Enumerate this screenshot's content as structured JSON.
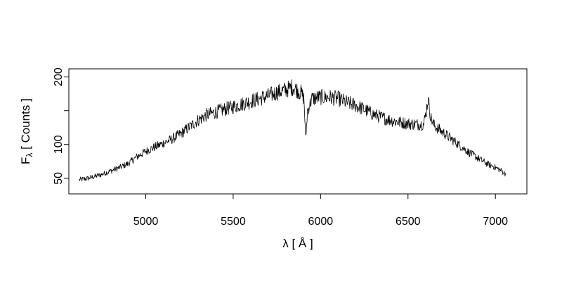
{
  "chart_data": {
    "type": "line",
    "title": "",
    "xlabel": "λ [ Å ]",
    "ylabel_main": "F",
    "ylabel_sub": "λ",
    "ylabel_rest": " [ Counts ]",
    "xlim": [
      4560,
      7180
    ],
    "ylim": [
      27,
      212
    ],
    "x_ticks": [
      5000,
      5500,
      6000,
      6500,
      7000
    ],
    "x_tick_labels": [
      "5000",
      "5500",
      "6000",
      "6500",
      "7000"
    ],
    "y_ticks": [
      50,
      100,
      150,
      200
    ],
    "y_tick_labels": [
      "50",
      "100",
      "",
      "200"
    ],
    "grid": false,
    "legend": "none",
    "line_color": "#000000",
    "series": [
      {
        "x": [
          4620,
          4650,
          4700,
          4750,
          4800,
          4850,
          4900,
          4950,
          5000,
          5050,
          5100,
          5150,
          5200,
          5250,
          5300,
          5350,
          5400,
          5450,
          5500,
          5550,
          5600,
          5650,
          5700,
          5750,
          5800,
          5840,
          5870,
          5890,
          5905,
          5915,
          5925,
          5950,
          6000,
          6050,
          6100,
          6150,
          6200,
          6250,
          6300,
          6350,
          6400,
          6450,
          6500,
          6550,
          6590,
          6605,
          6615,
          6630,
          6650,
          6700,
          6750,
          6800,
          6850,
          6900,
          6950,
          7000,
          7030,
          7060
        ],
        "y": [
          48,
          49,
          52,
          56,
          61,
          66,
          72,
          82,
          90,
          96,
          102,
          108,
          116,
          126,
          136,
          144,
          148,
          152,
          156,
          160,
          164,
          168,
          172,
          177,
          181,
          185,
          180,
          176,
          168,
          108,
          150,
          168,
          170,
          170,
          168,
          162,
          158,
          152,
          145,
          140,
          136,
          133,
          131,
          130,
          130,
          150,
          168,
          140,
          128,
          118,
          108,
          98,
          88,
          80,
          72,
          66,
          62,
          56
        ]
      }
    ]
  }
}
